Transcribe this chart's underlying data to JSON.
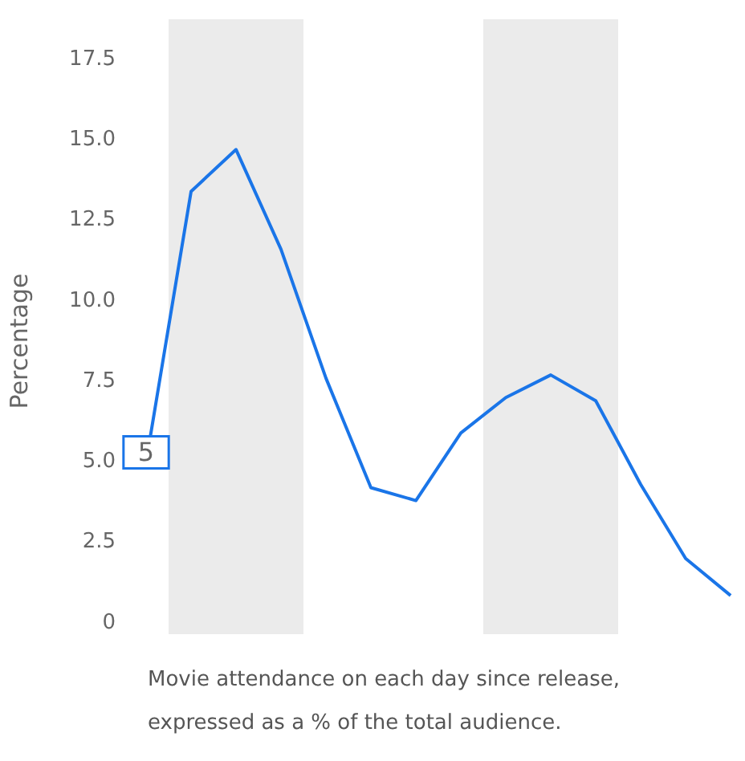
{
  "chart_data": {
    "type": "line",
    "ylabel": "Percentage",
    "annotations": [
      "Movie attendance on each day since release, expressed as a % of the total audience."
    ],
    "categories": [
      null,
      null,
      null,
      null,
      null,
      null,
      null,
      null,
      null,
      null,
      null,
      null,
      null,
      null
    ],
    "series": [
      {
        "color": "#1a75e8",
        "values": [
          5,
          13.4,
          14.7,
          11.6,
          7.6,
          4.2,
          3.8,
          5.9,
          7.0,
          7.7,
          6.9,
          4.3,
          2.0,
          0.85
        ],
        "value_labels": [
          "5",
          null,
          null,
          null,
          null,
          null,
          null,
          null,
          null,
          null,
          null,
          null,
          null,
          null
        ]
      }
    ],
    "ylim": [
      0,
      17.5
    ],
    "yticks": [
      0,
      2.5,
      {
        "value": 5,
        "label": "5.0"
      },
      7.5,
      {
        "value": 10,
        "label": "10.0"
      },
      12.5,
      {
        "value": 15,
        "label": "15.0"
      },
      17.5
    ],
    "tick_labels": "y",
    "grid": false,
    "legend": false,
    "marker": "none",
    "line_style": "solid"
  }
}
